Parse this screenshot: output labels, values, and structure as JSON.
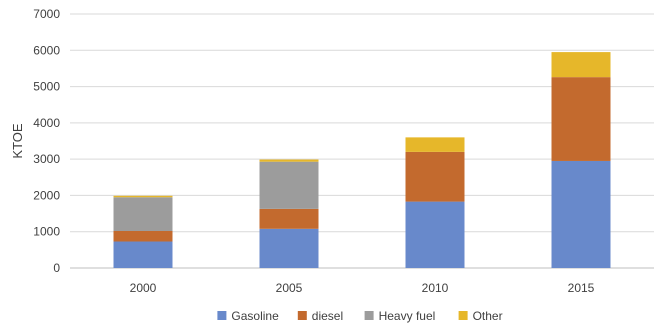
{
  "chart_data": {
    "type": "bar",
    "stacked": true,
    "categories": [
      "2000",
      "2005",
      "2010",
      "2015"
    ],
    "series": [
      {
        "name": "Gasoline",
        "color": "#6889CB",
        "values": [
          730,
          1080,
          1830,
          2950
        ]
      },
      {
        "name": "diesel",
        "color": "#C36A2E",
        "values": [
          290,
          550,
          1370,
          2310
        ]
      },
      {
        "name": "Heavy fuel",
        "color": "#9C9C9C",
        "values": [
          930,
          1300,
          0,
          0
        ]
      },
      {
        "name": "Other",
        "color": "#E6B72A",
        "values": [
          40,
          60,
          400,
          690
        ]
      }
    ],
    "title": "",
    "xlabel": "",
    "ylabel": "KTOE",
    "ylim": [
      0,
      7000
    ],
    "yticks": [
      "0",
      "1000",
      "2000",
      "3000",
      "4000",
      "5000",
      "6000",
      "7000"
    ],
    "grid": true,
    "legend_position": "bottom"
  }
}
